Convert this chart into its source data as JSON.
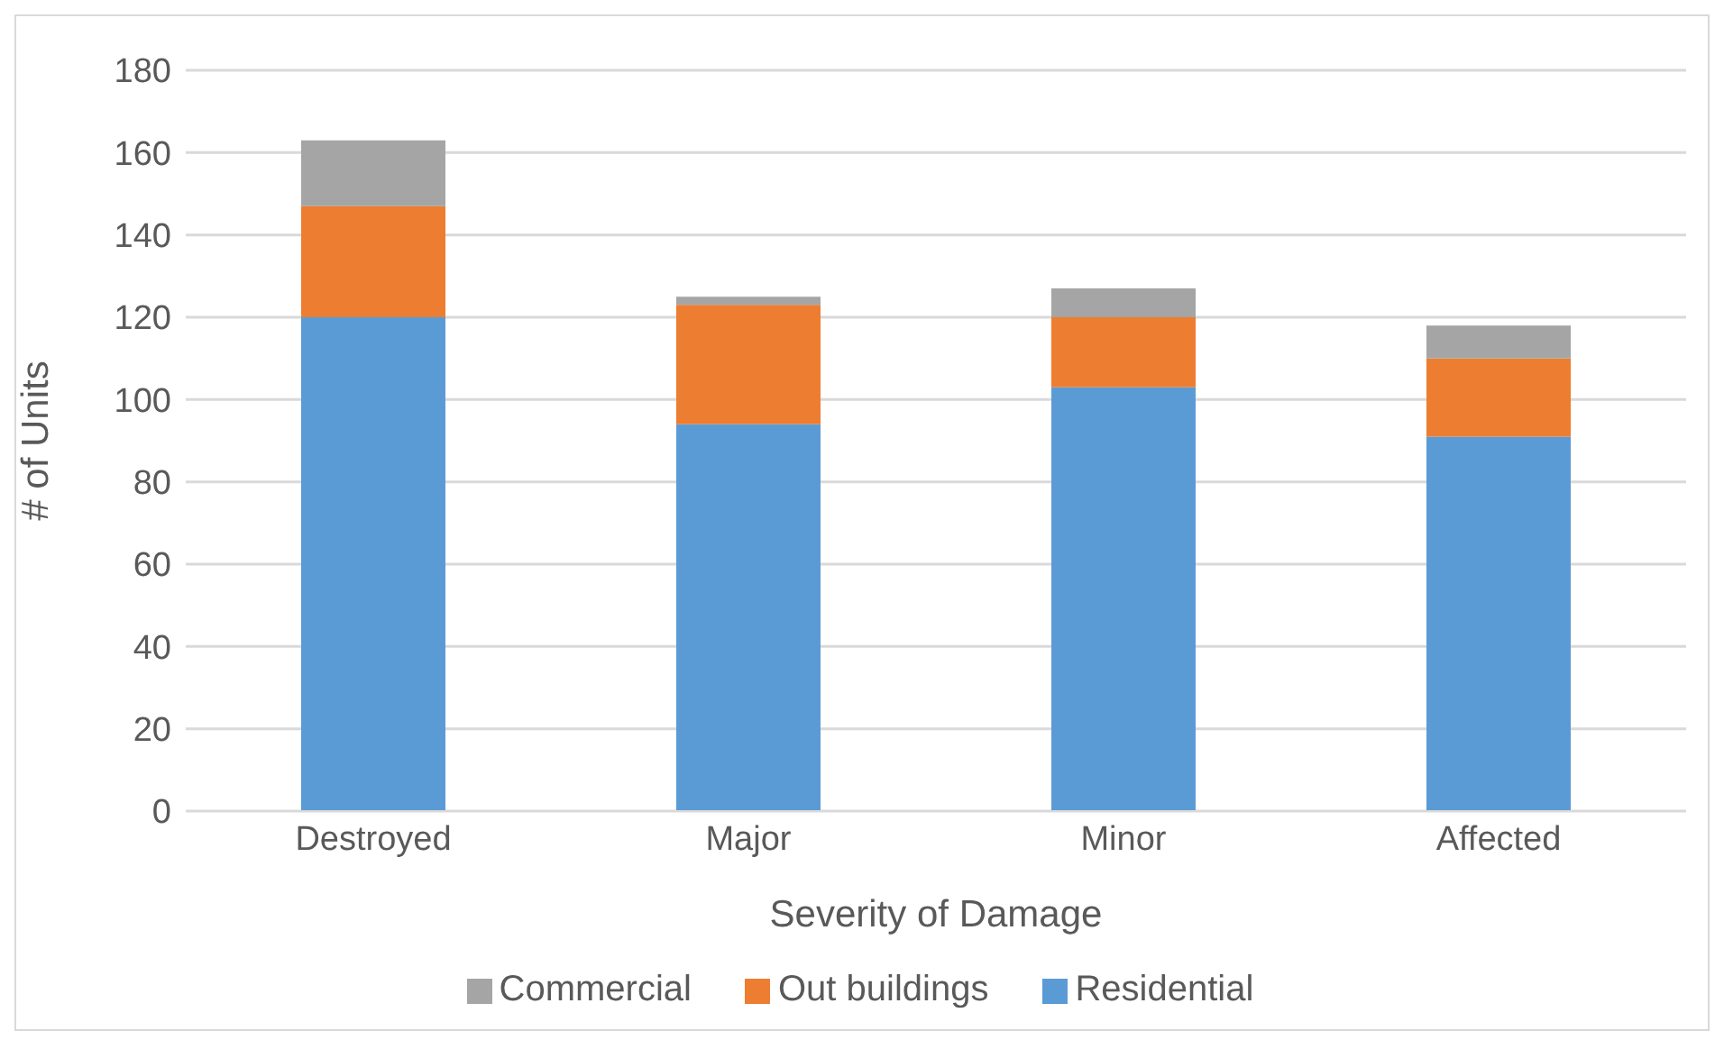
{
  "chart_data": {
    "type": "bar",
    "xlabel": "Severity of Damage",
    "ylabel": "# of Units",
    "categories": [
      "Destroyed",
      "Major",
      "Minor",
      "Affected"
    ],
    "series": [
      {
        "name": "Residential",
        "color": "#5b9bd5",
        "values": [
          120,
          94,
          103,
          91
        ]
      },
      {
        "name": "Out buildings",
        "color": "#ed7d31",
        "values": [
          27,
          29,
          17,
          19
        ]
      },
      {
        "name": "Commercial",
        "color": "#a5a5a5",
        "values": [
          16,
          2,
          7,
          8
        ]
      }
    ],
    "stacked": true,
    "ylim": [
      0,
      180
    ],
    "yticks": [
      0,
      20,
      40,
      60,
      80,
      100,
      120,
      140,
      160,
      180
    ],
    "grid": "y",
    "legend": "bottom"
  }
}
